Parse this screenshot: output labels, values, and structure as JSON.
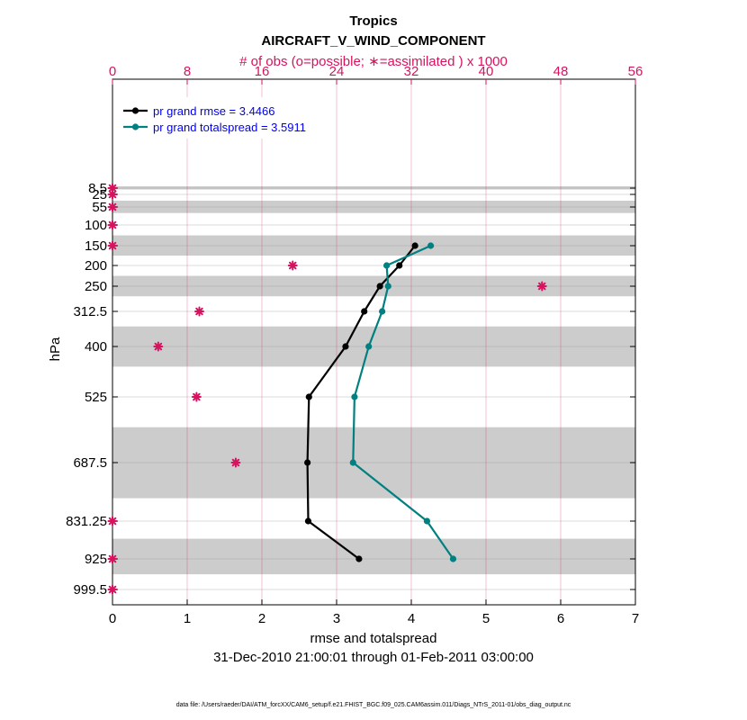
{
  "chart_data": {
    "type": "line",
    "title": "Tropics",
    "subtitle": "AIRCRAFT_V_WIND_COMPONENT",
    "top_axis_label": "# of obs (o=possible; ∗=assimilated ) x 1000",
    "xlabel": "rmse and totalspread",
    "ylabel": "hPa",
    "time_range": "31-Dec-2010 21:00:01 through 01-Feb-2011 03:00:00",
    "footer": "data file: /Users/raeder/DAI/ATM_forcXX/CAM6_setup/f.e21.FHIST_BGC.f09_025.CAM6assim.011/Diags_NTrS_2011-01/obs_diag_output.nc",
    "xlim": [
      0,
      7
    ],
    "x_ticks": [
      "0",
      "1",
      "2",
      "3",
      "4",
      "5",
      "6",
      "7"
    ],
    "top_xlim": [
      0,
      56
    ],
    "top_ticks": [
      "0",
      "8",
      "16",
      "24",
      "32",
      "40",
      "48",
      "56"
    ],
    "levels": [
      8.5,
      25,
      55,
      100,
      150,
      200,
      250,
      312.5,
      400,
      525,
      687.5,
      831.25,
      925,
      999.5
    ],
    "level_labels": [
      "8.5",
      "25",
      "55",
      "100",
      "150",
      "200",
      "250",
      "312.5",
      "400",
      "525",
      "687.5",
      "831.25",
      "925",
      "999.5"
    ],
    "series": [
      {
        "name": "rmse",
        "legend": "pr grand rmse = 3.4466",
        "color": "#000000",
        "points": [
          [
            4.05,
            150
          ],
          [
            3.84,
            200
          ],
          [
            3.58,
            250
          ],
          [
            3.37,
            312.5
          ],
          [
            3.12,
            400
          ],
          [
            2.63,
            525
          ],
          [
            2.61,
            687.5
          ],
          [
            2.62,
            831.25
          ],
          [
            3.3,
            925
          ]
        ]
      },
      {
        "name": "totalspread",
        "legend": "pr grand totalspread = 3.5911",
        "color": "#008080",
        "points": [
          [
            4.26,
            150
          ],
          [
            3.67,
            200
          ],
          [
            3.69,
            250
          ],
          [
            3.61,
            312.5
          ],
          [
            3.43,
            400
          ],
          [
            3.24,
            525
          ],
          [
            3.22,
            687.5
          ],
          [
            4.21,
            831.25
          ],
          [
            4.56,
            925
          ]
        ]
      }
    ],
    "obs_counts": {
      "color": "#d6135f",
      "points": [
        [
          0,
          8.5
        ],
        [
          0,
          25
        ],
        [
          0,
          55
        ],
        [
          0,
          100
        ],
        [
          0,
          150
        ],
        [
          19.3,
          200
        ],
        [
          46.0,
          250
        ],
        [
          9.3,
          312.5
        ],
        [
          4.9,
          400
        ],
        [
          9.0,
          525
        ],
        [
          13.2,
          687.5
        ],
        [
          0,
          831.25
        ],
        [
          0,
          925
        ],
        [
          0,
          999.5
        ]
      ]
    },
    "band_edges": [
      5,
      12,
      40,
      70,
      125,
      175,
      225,
      275,
      350,
      450,
      600,
      775,
      875,
      962.5,
      1037.5
    ]
  }
}
